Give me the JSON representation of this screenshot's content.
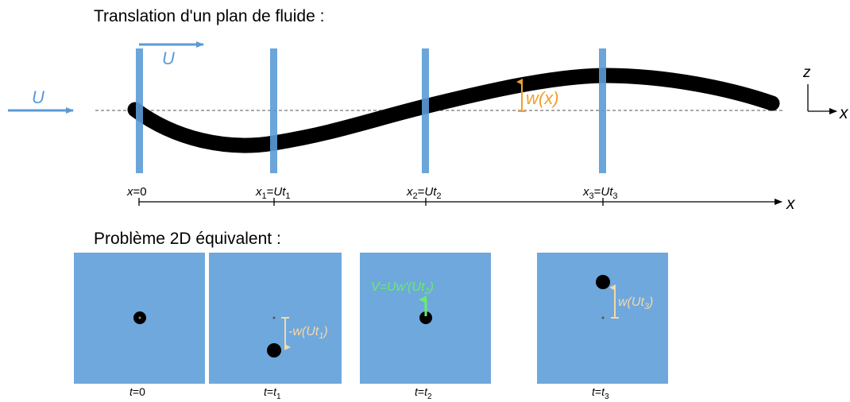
{
  "top": {
    "title": "Translation d'un plan de fluide :",
    "flow_label": "U",
    "plane_velocity_label": "U",
    "deflection_label": "w(x)",
    "axes": {
      "z": "z",
      "x": "x"
    },
    "axis_x_label": "x",
    "ticks": [
      {
        "var": "x",
        "sub": "",
        "eq": "=",
        "val": "0",
        "valsub": ""
      },
      {
        "var": "x",
        "sub": "1",
        "eq": "=",
        "val": "Ut",
        "valsub": "1"
      },
      {
        "var": "x",
        "sub": "2",
        "eq": "=",
        "val": "Ut",
        "valsub": "2"
      },
      {
        "var": "x",
        "sub": "3",
        "eq": "=",
        "val": "Ut",
        "valsub": "3"
      }
    ]
  },
  "bottom": {
    "title": "Problème 2D équivalent :",
    "panels": [
      {
        "time_var": "t",
        "time_eq": "=",
        "time_val": "0",
        "time_sub": "",
        "annotation": ""
      },
      {
        "time_var": "t",
        "time_eq": "=",
        "time_val": "t",
        "time_sub": "1",
        "annotation_pre": "-w(Ut",
        "annotation_sub": "1",
        "annotation_post": ")"
      },
      {
        "time_var": "t",
        "time_eq": "=",
        "time_val": "t",
        "time_sub": "2",
        "annotation_pre": "V=Uw'(Ut",
        "annotation_sub": "2",
        "annotation_post": ")"
      },
      {
        "time_var": "t",
        "time_eq": "=",
        "time_val": "t",
        "time_sub": "3",
        "annotation_pre": "w(Ut",
        "annotation_sub": "3",
        "annotation_post": ")"
      }
    ]
  },
  "colors": {
    "blue": "#5b9bd5",
    "panel": "#6fa8dc",
    "orange": "#f0a030",
    "light_orange": "#f6d8a8",
    "green": "#66ee66",
    "black": "#000000"
  }
}
